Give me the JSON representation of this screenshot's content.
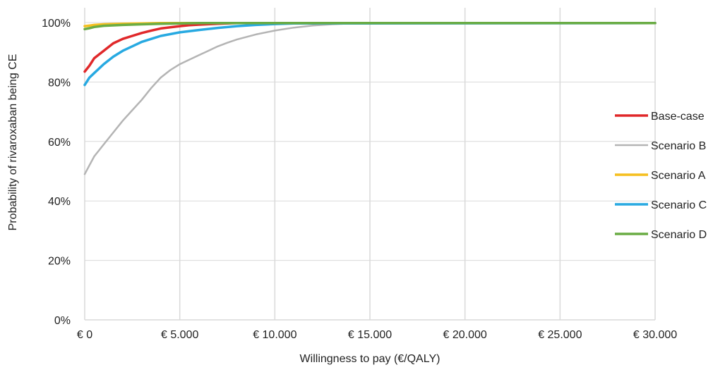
{
  "chart_data": {
    "type": "line",
    "title": "",
    "xlabel": "Willingness to pay (€/QALY)",
    "ylabel": "Probability of rivaroxaban being CE",
    "xlim": [
      0,
      30000
    ],
    "ylim": [
      0,
      100
    ],
    "x_ticks": [
      0,
      5000,
      10000,
      15000,
      20000,
      25000,
      30000
    ],
    "x_tick_labels": [
      "€ 0",
      "€ 5.000",
      "€ 10.000",
      "€ 15.000",
      "€ 20.000",
      "€ 25.000",
      "€ 30.000"
    ],
    "y_ticks": [
      0,
      20,
      40,
      60,
      80,
      100
    ],
    "y_tick_labels": [
      "0%",
      "20%",
      "40%",
      "60%",
      "80%",
      "100%"
    ],
    "grid": {
      "vertical": true,
      "horizontal": true
    },
    "legend_position": "right",
    "series": [
      {
        "name": "Base-case",
        "color": "#e0282a",
        "x": [
          0,
          250,
          500,
          1000,
          1500,
          2000,
          2500,
          3000,
          3500,
          4000,
          4500,
          5000,
          5500,
          6000,
          7000,
          8000,
          30000
        ],
        "y": [
          83.5,
          85.5,
          88,
          90.5,
          93,
          94.5,
          95.5,
          96.5,
          97.3,
          98,
          98.4,
          98.8,
          99.1,
          99.3,
          99.6,
          99.8,
          99.8
        ]
      },
      {
        "name": "Scenario B",
        "color": "#b4b4b4",
        "x": [
          0,
          250,
          500,
          750,
          1000,
          1500,
          2000,
          2500,
          3000,
          3500,
          4000,
          4500,
          5000,
          5500,
          6000,
          6500,
          7000,
          7500,
          8000,
          9000,
          10000,
          11000,
          12000,
          13000,
          14000,
          15000,
          30000
        ],
        "y": [
          49,
          52,
          55,
          57,
          59,
          63,
          67,
          70.5,
          74,
          78,
          81.5,
          84,
          86,
          87.5,
          89,
          90.5,
          92,
          93.2,
          94.3,
          96,
          97.3,
          98.3,
          99,
          99.4,
          99.7,
          99.8,
          99.8
        ]
      },
      {
        "name": "Scenario A",
        "color": "#f5bf1e",
        "x": [
          0,
          500,
          1000,
          2000,
          3000,
          4000,
          30000
        ],
        "y": [
          98.8,
          99.2,
          99.4,
          99.6,
          99.7,
          99.8,
          99.8
        ]
      },
      {
        "name": "Scenario C",
        "color": "#27a9e1",
        "x": [
          0,
          250,
          500,
          1000,
          1500,
          2000,
          2500,
          3000,
          3500,
          4000,
          5000,
          6000,
          7000,
          8000,
          9000,
          10000,
          11000,
          30000
        ],
        "y": [
          79,
          81.5,
          83,
          86,
          88.5,
          90.5,
          92,
          93.5,
          94.5,
          95.5,
          96.7,
          97.5,
          98.2,
          98.8,
          99.2,
          99.5,
          99.7,
          99.8
        ]
      },
      {
        "name": "Scenario D",
        "color": "#6aac44",
        "x": [
          0,
          250,
          500,
          1000,
          2000,
          3000,
          4000,
          5000,
          6000,
          30000
        ],
        "y": [
          97.8,
          98.1,
          98.5,
          98.9,
          99.2,
          99.4,
          99.6,
          99.7,
          99.8,
          99.8
        ]
      }
    ]
  }
}
